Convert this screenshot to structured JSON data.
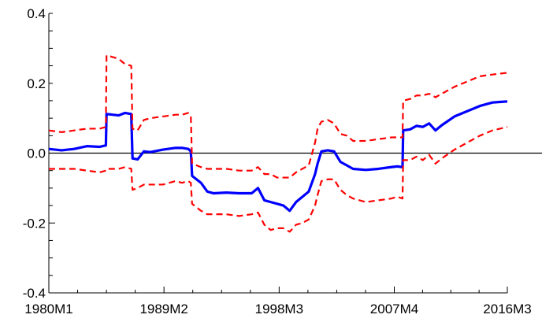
{
  "chart_data": {
    "type": "line",
    "title": "",
    "xlabel": "",
    "ylabel": "",
    "x_tick_labels": [
      "1980M1",
      "1989M2",
      "1998M3",
      "2007M4",
      "2016M3"
    ],
    "x_tick_positions": [
      1980.0,
      1989.083,
      1998.167,
      2007.25,
      2016.167
    ],
    "xlim": [
      1980.0,
      2016.167
    ],
    "y_tick_labels": [
      "0.4",
      "0.2",
      "0.0",
      "-0.2",
      "-0.4"
    ],
    "y_tick_values": [
      0.4,
      0.2,
      0.0,
      -0.2,
      -0.4
    ],
    "ylim": [
      -0.4,
      0.4
    ],
    "zero_line": true,
    "grid": false,
    "series": [
      {
        "role": "estimate",
        "color": "#0000ff",
        "style": "solid",
        "x": [
          1980.0,
          1981.0,
          1982.0,
          1983.0,
          1984.0,
          1984.5,
          1984.55,
          1985.5,
          1986.0,
          1986.5,
          1986.6,
          1987.0,
          1987.5,
          1988.0,
          1989.0,
          1990.0,
          1990.5,
          1991.0,
          1991.2,
          1991.3,
          1992.0,
          1992.5,
          1993.0,
          1994.0,
          1995.0,
          1996.0,
          1996.5,
          1997.0,
          1997.5,
          1998.0,
          1998.5,
          1999.0,
          1999.5,
          2000.0,
          2000.5,
          2001.0,
          2001.2,
          2001.5,
          2002.0,
          2002.5,
          2003.0,
          2003.5,
          2004.0,
          2005.0,
          2006.0,
          2007.0,
          2007.5,
          2007.9,
          2007.95,
          2008.5,
          2009.0,
          2009.5,
          2010.0,
          2010.5,
          2011.0,
          2012.0,
          2013.0,
          2014.0,
          2015.0,
          2016.167
        ],
        "y": [
          0.012,
          0.008,
          0.012,
          0.02,
          0.018,
          0.022,
          0.112,
          0.108,
          0.115,
          0.112,
          -0.015,
          -0.018,
          0.005,
          0.003,
          0.01,
          0.015,
          0.015,
          0.012,
          0.005,
          -0.065,
          -0.085,
          -0.11,
          -0.115,
          -0.113,
          -0.115,
          -0.115,
          -0.1,
          -0.135,
          -0.14,
          -0.145,
          -0.15,
          -0.165,
          -0.14,
          -0.125,
          -0.11,
          -0.06,
          -0.03,
          0.005,
          0.008,
          0.005,
          -0.025,
          -0.035,
          -0.045,
          -0.048,
          -0.045,
          -0.04,
          -0.038,
          -0.04,
          0.065,
          0.068,
          0.078,
          0.075,
          0.085,
          0.065,
          0.08,
          0.105,
          0.12,
          0.135,
          0.145,
          0.148
        ]
      },
      {
        "role": "upper-band",
        "color": "#ff0000",
        "style": "dashed",
        "x": [
          1980.0,
          1981.0,
          1982.0,
          1983.0,
          1984.0,
          1984.5,
          1984.55,
          1985.5,
          1986.0,
          1986.5,
          1986.6,
          1987.0,
          1987.5,
          1988.0,
          1989.0,
          1990.0,
          1990.5,
          1991.0,
          1991.2,
          1991.3,
          1992.0,
          1992.5,
          1993.0,
          1994.0,
          1995.0,
          1996.0,
          1996.5,
          1997.0,
          1997.5,
          1998.0,
          1998.5,
          1999.0,
          1999.5,
          2000.0,
          2000.5,
          2001.0,
          2001.2,
          2001.5,
          2002.0,
          2002.5,
          2003.0,
          2003.5,
          2004.0,
          2005.0,
          2006.0,
          2007.0,
          2007.5,
          2007.9,
          2007.95,
          2008.5,
          2009.0,
          2009.5,
          2010.0,
          2010.5,
          2011.0,
          2012.0,
          2013.0,
          2014.0,
          2015.0,
          2016.167
        ],
        "y": [
          0.065,
          0.06,
          0.065,
          0.07,
          0.07,
          0.075,
          0.28,
          0.27,
          0.255,
          0.25,
          0.07,
          0.065,
          0.095,
          0.1,
          0.105,
          0.11,
          0.11,
          0.115,
          0.105,
          -0.03,
          -0.04,
          -0.045,
          -0.045,
          -0.045,
          -0.05,
          -0.05,
          -0.04,
          -0.06,
          -0.06,
          -0.07,
          -0.07,
          -0.07,
          -0.055,
          -0.045,
          -0.035,
          0.03,
          0.07,
          0.09,
          0.095,
          0.085,
          0.055,
          0.05,
          0.035,
          0.035,
          0.04,
          0.045,
          0.045,
          0.045,
          0.15,
          0.155,
          0.165,
          0.165,
          0.17,
          0.16,
          0.17,
          0.19,
          0.205,
          0.22,
          0.225,
          0.23
        ]
      },
      {
        "role": "lower-band",
        "color": "#ff0000",
        "style": "dashed",
        "x": [
          1980.0,
          1981.0,
          1982.0,
          1983.0,
          1984.0,
          1984.5,
          1984.55,
          1985.5,
          1986.0,
          1986.5,
          1986.6,
          1987.0,
          1987.5,
          1988.0,
          1989.0,
          1990.0,
          1990.5,
          1991.0,
          1991.2,
          1991.3,
          1992.0,
          1992.5,
          1993.0,
          1994.0,
          1995.0,
          1996.0,
          1996.5,
          1997.0,
          1997.5,
          1998.0,
          1998.5,
          1999.0,
          1999.5,
          2000.0,
          2000.5,
          2001.0,
          2001.2,
          2001.5,
          2002.0,
          2002.5,
          2003.0,
          2003.5,
          2004.0,
          2005.0,
          2006.0,
          2007.0,
          2007.5,
          2007.9,
          2007.95,
          2008.5,
          2009.0,
          2009.5,
          2010.0,
          2010.5,
          2011.0,
          2012.0,
          2013.0,
          2014.0,
          2015.0,
          2016.167
        ],
        "y": [
          -0.045,
          -0.045,
          -0.045,
          -0.05,
          -0.055,
          -0.05,
          -0.045,
          -0.045,
          -0.04,
          -0.045,
          -0.105,
          -0.1,
          -0.09,
          -0.09,
          -0.09,
          -0.08,
          -0.085,
          -0.08,
          -0.085,
          -0.145,
          -0.165,
          -0.175,
          -0.175,
          -0.175,
          -0.18,
          -0.175,
          -0.17,
          -0.205,
          -0.22,
          -0.215,
          -0.215,
          -0.225,
          -0.205,
          -0.2,
          -0.19,
          -0.15,
          -0.12,
          -0.08,
          -0.075,
          -0.075,
          -0.105,
          -0.12,
          -0.13,
          -0.14,
          -0.135,
          -0.13,
          -0.125,
          -0.13,
          -0.02,
          -0.02,
          -0.01,
          -0.02,
          -0.005,
          -0.03,
          -0.015,
          0.01,
          0.03,
          0.05,
          0.065,
          0.075
        ]
      }
    ]
  }
}
